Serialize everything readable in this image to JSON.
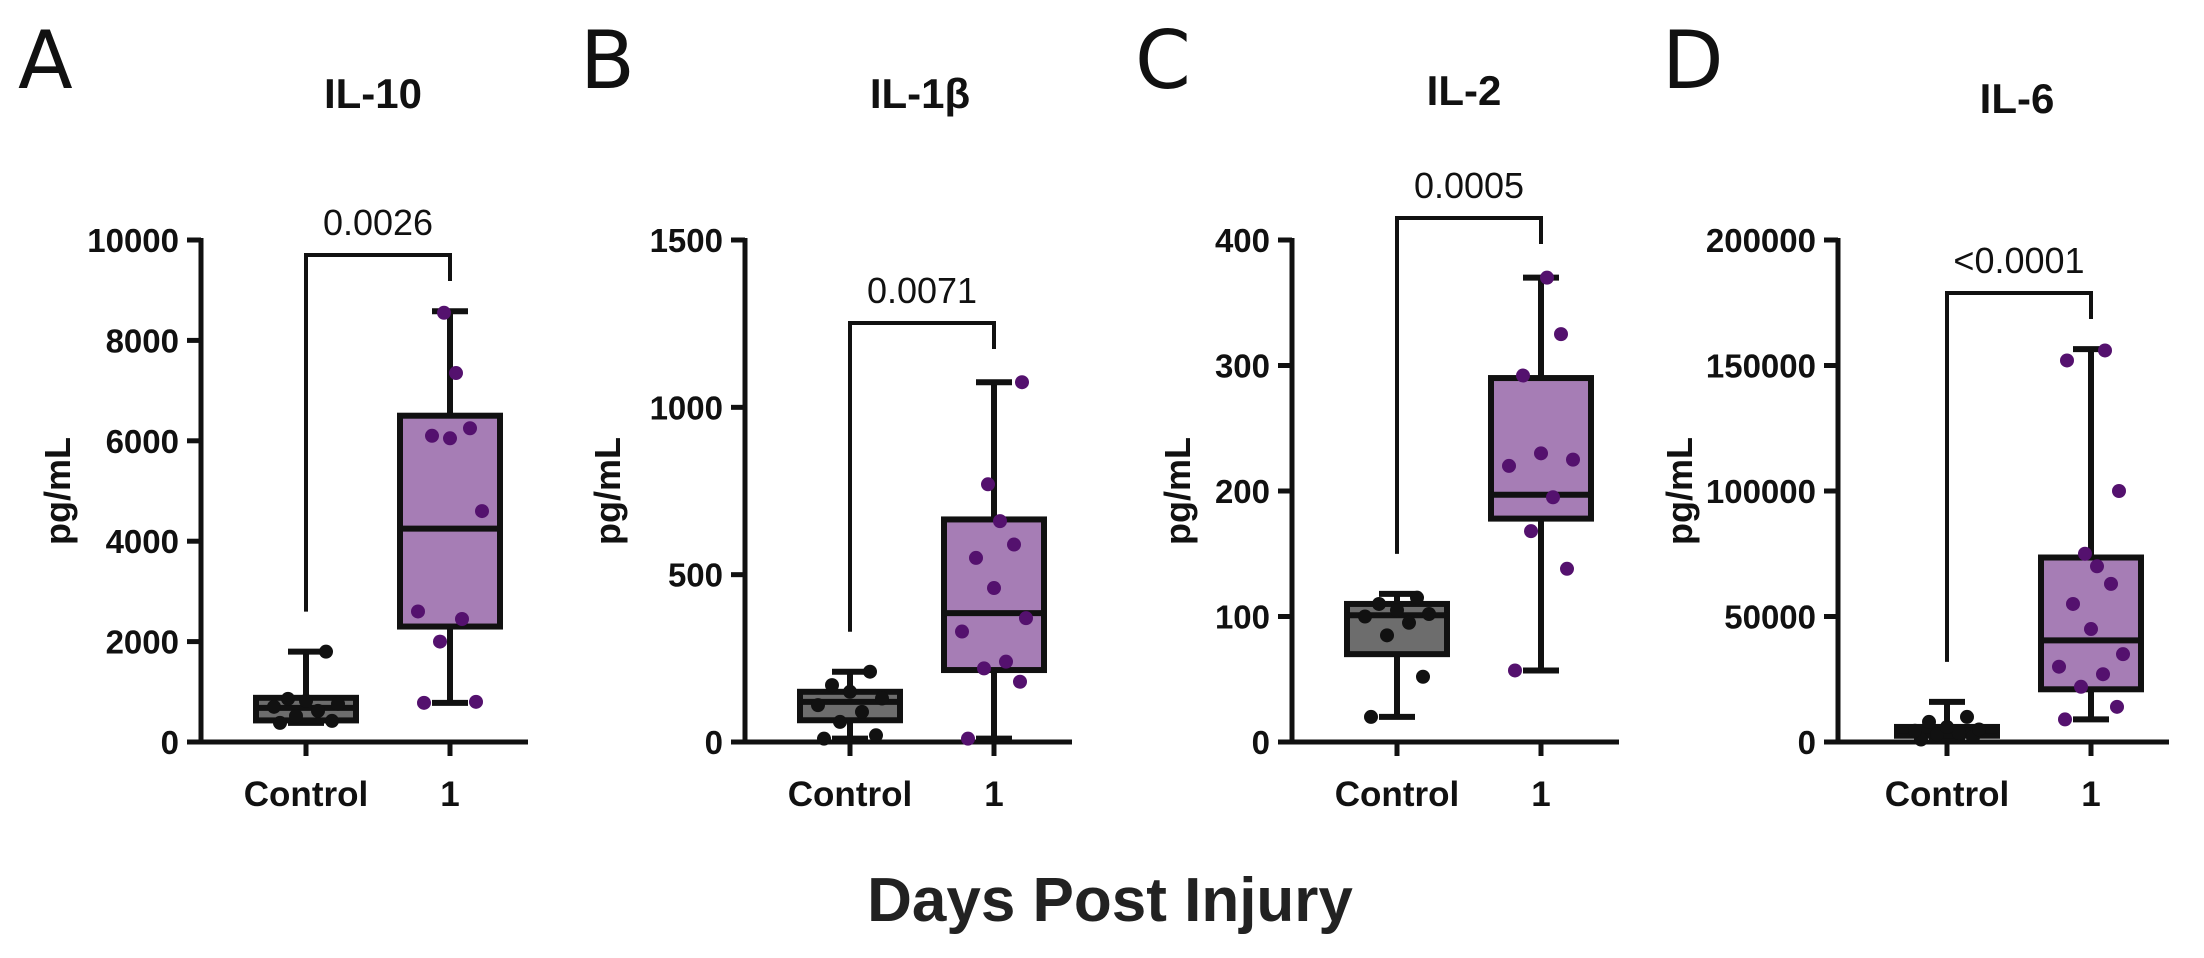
{
  "figure": {
    "xlabel": "Days Post Injury",
    "colors": {
      "control_fill": "#6d6d6d",
      "day1_fill": "#a67db5",
      "control_point": "#111111",
      "day1_point": "#54116e",
      "line": "#111111"
    }
  },
  "chart_data": [
    {
      "type": "box",
      "panel": "A",
      "title": "IL-10",
      "ylabel": "pg/mL",
      "ylim": [
        0,
        10000
      ],
      "yticks": [
        0,
        2000,
        4000,
        6000,
        8000,
        10000
      ],
      "categories": [
        "Control",
        "1"
      ],
      "boxes": [
        {
          "min": 380,
          "q1": 430,
          "median": 680,
          "q3": 880,
          "max": 1800
        },
        {
          "min": 780,
          "q1": 2300,
          "median": 4250,
          "q3": 6500,
          "max": 8580
        }
      ],
      "points": [
        [
          380,
          420,
          520,
          620,
          700,
          760,
          820,
          860,
          1800
        ],
        [
          780,
          800,
          2000,
          2450,
          2600,
          4600,
          6050,
          6100,
          6250,
          7350,
          8550
        ]
      ],
      "pvalue": "0.0026"
    },
    {
      "type": "box",
      "panel": "B",
      "title": "IL-1β",
      "ylabel": "pg/mL",
      "ylim": [
        0,
        1500
      ],
      "yticks": [
        0,
        500,
        1000,
        1500
      ],
      "categories": [
        "Control",
        "1"
      ],
      "boxes": [
        {
          "min": 10,
          "q1": 65,
          "median": 120,
          "q3": 150,
          "max": 210
        },
        {
          "min": 10,
          "q1": 215,
          "median": 385,
          "q3": 665,
          "max": 1075
        }
      ],
      "points": [
        [
          10,
          20,
          60,
          90,
          110,
          130,
          150,
          170,
          210
        ],
        [
          10,
          180,
          220,
          240,
          330,
          370,
          460,
          550,
          590,
          660,
          770,
          1075
        ]
      ],
      "pvalue": "0.0071"
    },
    {
      "type": "box",
      "panel": "C",
      "title": "IL-2",
      "ylabel": "pg/mL",
      "ylim": [
        0,
        400
      ],
      "yticks": [
        0,
        100,
        200,
        300,
        400
      ],
      "categories": [
        "Control",
        "1"
      ],
      "boxes": [
        {
          "min": 20,
          "q1": 70,
          "median": 101,
          "q3": 110,
          "max": 118
        },
        {
          "min": 57,
          "q1": 178,
          "median": 197,
          "q3": 290,
          "max": 370
        }
      ],
      "points": [
        [
          20,
          52,
          85,
          95,
          100,
          102,
          105,
          110,
          115
        ],
        [
          57,
          138,
          168,
          195,
          220,
          225,
          230,
          292,
          325,
          370
        ]
      ],
      "pvalue": "0.0005"
    },
    {
      "type": "box",
      "panel": "D",
      "title": "IL-6",
      "ylabel": "pg/mL",
      "ylim": [
        0,
        200000
      ],
      "yticks": [
        0,
        50000,
        100000,
        150000,
        200000
      ],
      "categories": [
        "Control",
        "1"
      ],
      "boxes": [
        {
          "min": 1000,
          "q1": 2500,
          "median": 4500,
          "q3": 6000,
          "max": 16000
        },
        {
          "min": 9000,
          "q1": 21000,
          "median": 40500,
          "q3": 73500,
          "max": 156500
        }
      ],
      "points": [
        [
          1000,
          2000,
          3000,
          3500,
          4500,
          5000,
          6000,
          8000,
          10000
        ],
        [
          9000,
          14000,
          22000,
          27000,
          30000,
          35000,
          45000,
          55000,
          63000,
          70000,
          75000,
          100000,
          152000,
          156000
        ]
      ],
      "pvalue": "<0.0001"
    }
  ]
}
